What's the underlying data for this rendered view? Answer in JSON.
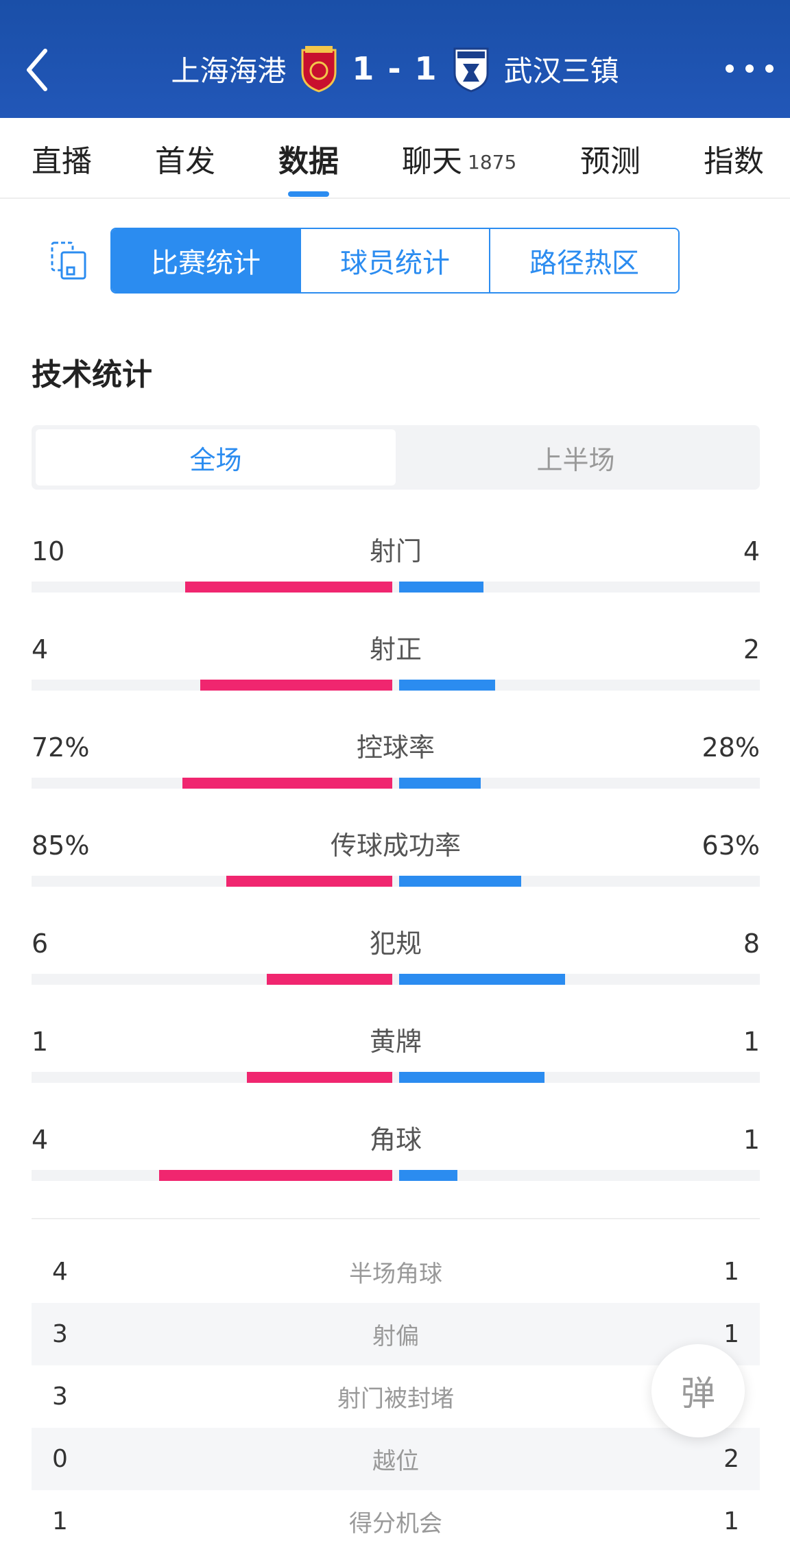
{
  "header": {
    "home_team": "上海海港",
    "away_team": "武汉三镇",
    "score": "1 - 1"
  },
  "tabs": [
    {
      "label": "直播",
      "sub": ""
    },
    {
      "label": "首发",
      "sub": ""
    },
    {
      "label": "数据",
      "sub": ""
    },
    {
      "label": "聊天",
      "sub": "1875"
    },
    {
      "label": "预测",
      "sub": ""
    },
    {
      "label": "指数",
      "sub": ""
    }
  ],
  "segments": [
    "比赛统计",
    "球员统计",
    "路径热区"
  ],
  "section_title": "技术统计",
  "periods": [
    "全场",
    "上半场"
  ],
  "stats": [
    {
      "label": "射门",
      "left": "10",
      "right": "4",
      "lfrac": 0.71,
      "rfrac": 0.29
    },
    {
      "label": "射正",
      "left": "4",
      "right": "2",
      "lfrac": 0.66,
      "rfrac": 0.33
    },
    {
      "label": "控球率",
      "left": "72%",
      "right": "28%",
      "lfrac": 0.72,
      "rfrac": 0.28
    },
    {
      "label": "传球成功率",
      "left": "85%",
      "right": "63%",
      "lfrac": 0.57,
      "rfrac": 0.42
    },
    {
      "label": "犯规",
      "left": "6",
      "right": "8",
      "lfrac": 0.43,
      "rfrac": 0.57
    },
    {
      "label": "黄牌",
      "left": "1",
      "right": "1",
      "lfrac": 0.5,
      "rfrac": 0.5
    },
    {
      "label": "角球",
      "left": "4",
      "right": "1",
      "lfrac": 0.8,
      "rfrac": 0.2
    }
  ],
  "rows": [
    {
      "label": "半场角球",
      "left": "4",
      "right": "1"
    },
    {
      "label": "射偏",
      "left": "3",
      "right": "1"
    },
    {
      "label": "射门被封堵",
      "left": "3",
      "right": ""
    },
    {
      "label": "越位",
      "left": "0",
      "right": "2"
    },
    {
      "label": "得分机会",
      "left": "1",
      "right": "1"
    }
  ],
  "float_button": "弹",
  "colors": {
    "header": "#1f53b0",
    "accent": "#2b8cf0",
    "home_bar": "#f0266f",
    "away_bar": "#2b8cf0"
  }
}
